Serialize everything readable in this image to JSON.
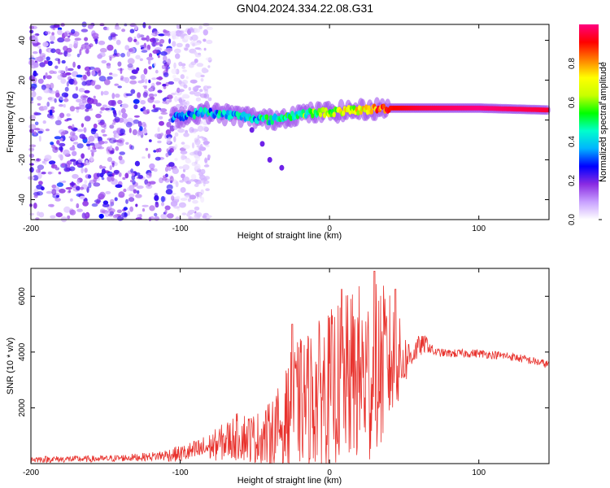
{
  "title": "GN04.2024.334.22.08.G31",
  "colors": {
    "snr_line": "#e8322d",
    "frame": "#000000",
    "colormap": [
      "#ffffff",
      "#c8a0ff",
      "#8a2be2",
      "#0000ff",
      "#00b4ff",
      "#00ffcc",
      "#00ff00",
      "#c8ff00",
      "#ffff00",
      "#ff8000",
      "#ff0000",
      "#ff007f"
    ]
  },
  "chart_data": [
    {
      "type": "heatmap",
      "title": "",
      "xlabel": "Height of straight line (km)",
      "ylabel": "Frequency (Hz)",
      "xlim": [
        -200,
        147
      ],
      "ylim": [
        -50,
        48
      ],
      "x_ticks": [
        -200,
        -100,
        0,
        100
      ],
      "y_ticks": [
        -40,
        -20,
        0,
        20,
        40
      ],
      "colorbar": {
        "label": "Normalized spectral amplitude",
        "range": [
          0,
          1
        ],
        "ticks": [
          "0.0",
          "0.2",
          "0.4",
          "0.6",
          "0.8"
        ],
        "placement": "right"
      },
      "features": {
        "noise_region_x": [
          -200,
          -105
        ],
        "dominant_frequency_track": [
          {
            "x": -105,
            "freq": 1,
            "amp": 0.35
          },
          {
            "x": -85,
            "freq": 4,
            "amp": 0.4
          },
          {
            "x": -60,
            "freq": 2,
            "amp": 0.4
          },
          {
            "x": -40,
            "freq": 0,
            "amp": 0.45
          },
          {
            "x": -20,
            "freq": 3,
            "amp": 0.5
          },
          {
            "x": 0,
            "freq": 4,
            "amp": 0.6
          },
          {
            "x": 20,
            "freq": 5,
            "amp": 0.7
          },
          {
            "x": 40,
            "freq": 6,
            "amp": 0.9
          },
          {
            "x": 60,
            "freq": 6,
            "amp": 0.95
          },
          {
            "x": 100,
            "freq": 6,
            "amp": 1.0
          },
          {
            "x": 147,
            "freq": 5,
            "amp": 0.95
          }
        ],
        "secondary_tail": [
          {
            "x": -52,
            "freq": -5
          },
          {
            "x": -45,
            "freq": -12
          },
          {
            "x": -40,
            "freq": -20
          },
          {
            "x": -32,
            "freq": -24
          }
        ]
      }
    },
    {
      "type": "line",
      "title": "",
      "xlabel": "Height of straight line (km)",
      "ylabel": "SNR (10 * v/v)",
      "xlim": [
        -200,
        147
      ],
      "ylim": [
        0,
        7000
      ],
      "x_ticks": [
        -200,
        -100,
        0,
        100
      ],
      "y_ticks": [
        2000,
        4000,
        6000
      ],
      "series": [
        {
          "envelope": {
            "x": [
              -200,
              -150,
              -120,
              -100,
              -90,
              -80,
              -70,
              -60,
              -50,
              -40,
              -30,
              -25,
              -20,
              -10,
              0,
              10,
              20,
              25,
              30,
              35,
              40,
              45,
              50,
              55,
              60,
              65,
              70,
              80,
              90,
              100,
              110,
              120,
              130,
              147
            ],
            "mean": [
              150,
              170,
              250,
              350,
              450,
              600,
              800,
              1000,
              900,
              1000,
              1500,
              2000,
              2200,
              2400,
              2700,
              3000,
              3200,
              3000,
              3200,
              3500,
              3700,
              3600,
              3700,
              3900,
              4200,
              4300,
              4000,
              3950,
              3950,
              3950,
              3900,
              3850,
              3750,
              3550
            ],
            "amplitude": [
              120,
              120,
              150,
              300,
              400,
              500,
              700,
              900,
              900,
              1200,
              1700,
              2200,
              2300,
              2600,
              2800,
              3000,
              3300,
              3300,
              3300,
              3000,
              2500,
              2000,
              1000,
              500,
              400,
              300,
              150,
              150,
              150,
              150,
              150,
              150,
              150,
              150
            ]
          },
          "peaks": [
            {
              "x": -25,
              "y": 5000
            },
            {
              "x": 8,
              "y": 6250
            },
            {
              "x": 30,
              "y": 6900
            },
            {
              "x": 44,
              "y": 6250
            }
          ]
        }
      ]
    }
  ]
}
